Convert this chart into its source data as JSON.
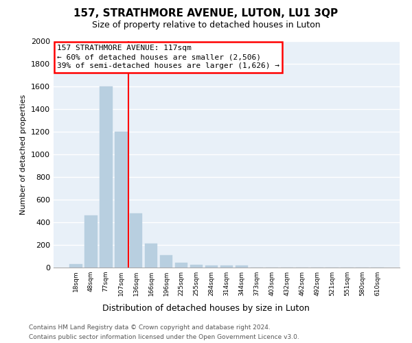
{
  "title": "157, STRATHMORE AVENUE, LUTON, LU1 3QP",
  "subtitle": "Size of property relative to detached houses in Luton",
  "xlabel": "Distribution of detached houses by size in Luton",
  "ylabel": "Number of detached properties",
  "footnote1": "Contains HM Land Registry data © Crown copyright and database right 2024.",
  "footnote2": "Contains public sector information licensed under the Open Government Licence v3.0.",
  "annotation_line1": "157 STRATHMORE AVENUE: 117sqm",
  "annotation_line2": "← 60% of detached houses are smaller (2,506)",
  "annotation_line3": "39% of semi-detached houses are larger (1,626) →",
  "categories": [
    "18sqm",
    "48sqm",
    "77sqm",
    "107sqm",
    "136sqm",
    "166sqm",
    "196sqm",
    "225sqm",
    "255sqm",
    "284sqm",
    "314sqm",
    "344sqm",
    "373sqm",
    "403sqm",
    "432sqm",
    "462sqm",
    "492sqm",
    "521sqm",
    "551sqm",
    "580sqm",
    "610sqm"
  ],
  "values": [
    30,
    460,
    1600,
    1200,
    480,
    210,
    110,
    40,
    25,
    20,
    20,
    20,
    0,
    0,
    0,
    0,
    0,
    0,
    0,
    0,
    0
  ],
  "bar_color": "#b8cfe0",
  "vline_index": 3.5,
  "ylim_max": 2000,
  "ytick_step": 200,
  "background_color": "#e8f0f8",
  "grid_color": "#ffffff",
  "title_fontsize": 11,
  "subtitle_fontsize": 9,
  "xlabel_fontsize": 9,
  "ylabel_fontsize": 8,
  "xtick_fontsize": 6.5,
  "ytick_fontsize": 8,
  "annotation_fontsize": 8,
  "footnote_fontsize": 6.5
}
